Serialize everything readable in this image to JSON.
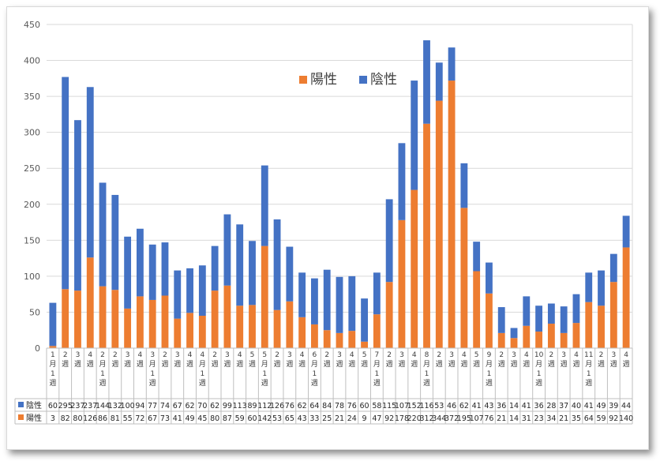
{
  "colors": {
    "positive": "#ED7D31",
    "negative": "#4472C4",
    "grid": "#d9d9d9",
    "axis": "#bfbfbf"
  },
  "chart_data": {
    "type": "bar",
    "stacked": true,
    "title": "",
    "xlabel": "",
    "ylabel": "",
    "ylim": [
      0,
      450
    ],
    "yticks": [
      0,
      50,
      100,
      150,
      200,
      250,
      300,
      350,
      400,
      450
    ],
    "grid": true,
    "legend_position": "top-center",
    "categories": [
      "1月1週",
      "2週",
      "3週",
      "4週",
      "2月1週",
      "2週",
      "3週",
      "4週",
      "3月1週",
      "2週",
      "3週",
      "4週",
      "4月1週",
      "2週",
      "3週",
      "4週",
      "5週",
      "5月1週",
      "2週",
      "3週",
      "4週",
      "6月1週",
      "2週",
      "3週",
      "4週",
      "5週",
      "7月1週",
      "2週",
      "3週",
      "4週",
      "8月1週",
      "2週",
      "3週",
      "4週",
      "5週",
      "9月1週",
      "2週",
      "3週",
      "4週",
      "10月1週",
      "2週",
      "3週",
      "4週",
      "11月1週",
      "2週",
      "3週",
      "4週"
    ],
    "series": [
      {
        "name": "陰性",
        "color": "#4472C4",
        "values": [
          60,
          295,
          237,
          237,
          144,
          132,
          100,
          94,
          77,
          74,
          67,
          62,
          70,
          62,
          99,
          113,
          89,
          112,
          126,
          76,
          62,
          64,
          84,
          78,
          76,
          60,
          58,
          115,
          107,
          152,
          116,
          53,
          46,
          62,
          41,
          43,
          36,
          14,
          41,
          36,
          28,
          37,
          40,
          41,
          49,
          39,
          44
        ]
      },
      {
        "name": "陽性",
        "color": "#ED7D31",
        "values": [
          3,
          82,
          80,
          126,
          86,
          81,
          55,
          72,
          67,
          73,
          41,
          49,
          45,
          80,
          87,
          59,
          60,
          142,
          53,
          65,
          43,
          33,
          25,
          21,
          24,
          9,
          47,
          92,
          178,
          220,
          312,
          344,
          372,
          195,
          107,
          76,
          21,
          14,
          31,
          23,
          34,
          21,
          35,
          64,
          59,
          92,
          140
        ]
      }
    ]
  },
  "legend": {
    "positive_label": "陽性",
    "negative_label": "陰性"
  },
  "table": {
    "row_negative_label": "陰性",
    "row_positive_label": "陽性"
  }
}
